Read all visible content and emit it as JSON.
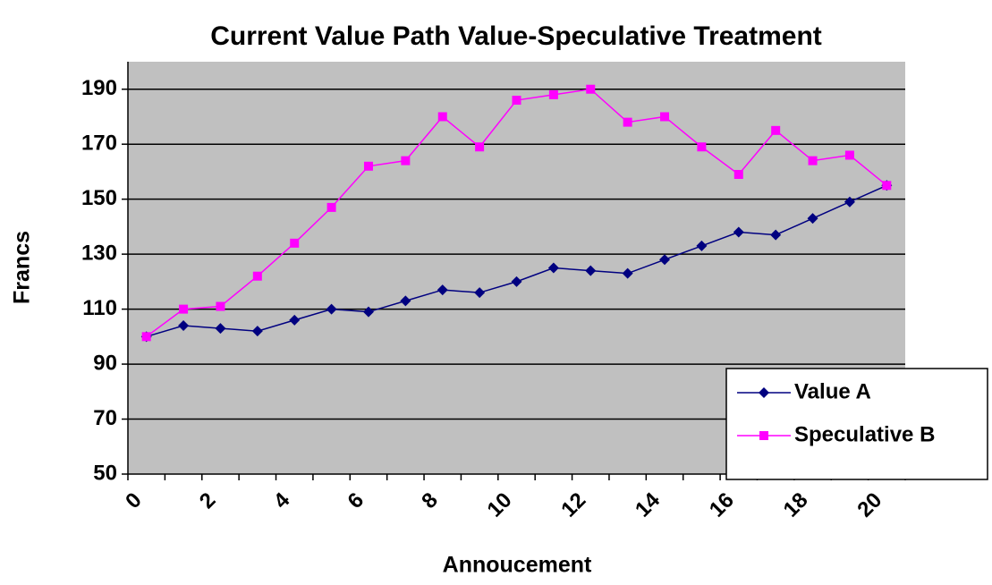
{
  "chart_data": {
    "type": "line",
    "title": "Current Value Path Value-Speculative Treatment",
    "xlabel": "Annoucement",
    "ylabel": "Francs",
    "categories": [
      0,
      null,
      2,
      null,
      4,
      null,
      6,
      null,
      8,
      null,
      10,
      null,
      12,
      null,
      14,
      null,
      16,
      null,
      18,
      null,
      20
    ],
    "series": [
      {
        "name": "Value A",
        "color": "#000080",
        "marker": "diamond",
        "values": [
          100,
          104,
          103,
          102,
          106,
          110,
          109,
          113,
          117,
          116,
          120,
          125,
          124,
          123,
          128,
          133,
          138,
          137,
          143,
          149,
          155
        ]
      },
      {
        "name": "Speculative B",
        "color": "#ff00ff",
        "marker": "square",
        "values": [
          100,
          110,
          111,
          122,
          134,
          147,
          162,
          164,
          180,
          169,
          186,
          188,
          190,
          178,
          180,
          169,
          159,
          175,
          164,
          166,
          155
        ]
      }
    ],
    "ylim": [
      50,
      200
    ],
    "yticks": [
      50,
      70,
      90,
      110,
      130,
      150,
      170,
      190
    ],
    "grid": true,
    "legend": "lower right",
    "plot_background": "#c0c0c0"
  }
}
